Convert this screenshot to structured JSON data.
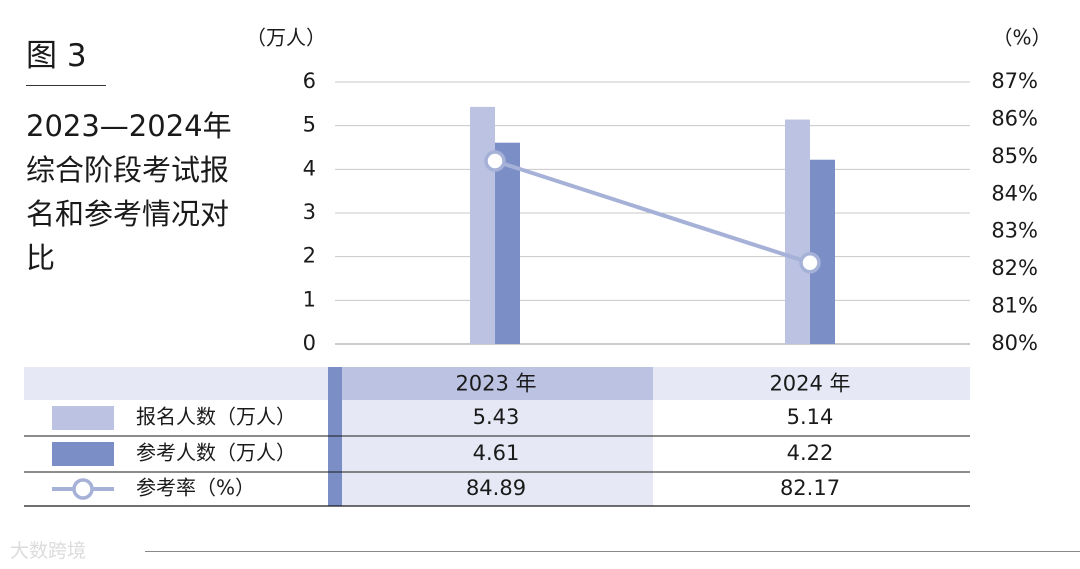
{
  "figure_label": "图 3",
  "title": "2023—2024年综合阶段考试报名和参考情况对比",
  "watermark": "大数跨境",
  "colors": {
    "registered": "#bcc3e2",
    "attended": "#7b8ec6",
    "rate_line": "#a6b1d8",
    "header_bg": "#e6e9f5",
    "header_2023_bg": "#bcc3e2",
    "grid": "#c8c8c8"
  },
  "chart_data": {
    "type": "bar",
    "categories": [
      "2023 年",
      "2024 年"
    ],
    "y_left": {
      "unit_label": "（万人）",
      "min": 0,
      "max": 6,
      "ticks": [
        "0",
        "1",
        "2",
        "3",
        "4",
        "5",
        "6"
      ]
    },
    "y_right": {
      "unit_label": "（%）",
      "min": 80,
      "max": 87,
      "ticks": [
        "80%",
        "81%",
        "82%",
        "83%",
        "84%",
        "85%",
        "86%",
        "87%"
      ]
    },
    "series": [
      {
        "name": "报名人数（万人）",
        "type": "bar",
        "axis": "left",
        "values": [
          5.43,
          5.14
        ],
        "labels": [
          "5.43",
          "5.14"
        ]
      },
      {
        "name": "参考人数（万人）",
        "type": "bar",
        "axis": "left",
        "values": [
          4.61,
          4.22
        ],
        "labels": [
          "4.61",
          "4.22"
        ]
      },
      {
        "name": "参考率（%）",
        "type": "line",
        "axis": "right",
        "values": [
          84.89,
          82.17
        ],
        "labels": [
          "84.89",
          "82.17"
        ]
      }
    ],
    "grid": true,
    "legend": "table-below"
  }
}
